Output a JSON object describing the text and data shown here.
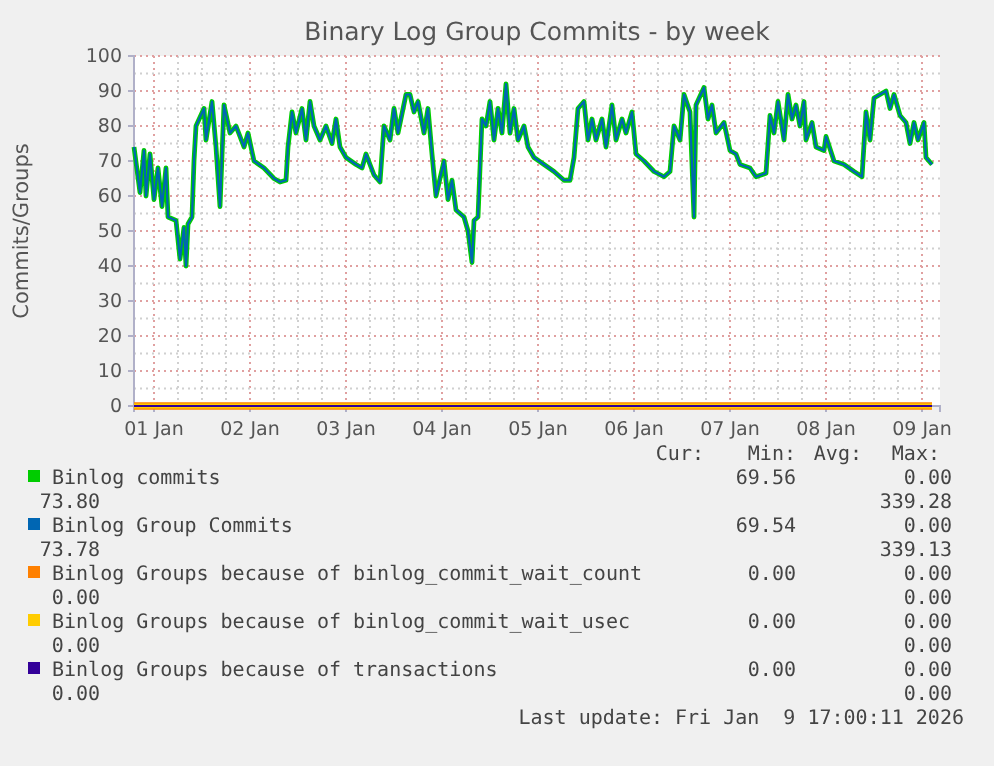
{
  "chart_data": {
    "type": "line",
    "title": "Binary Log Group Commits - by week",
    "ylabel": "Commits/Groups",
    "x": [
      "2025-12-31T19:00",
      "2025-12-31T20:30",
      "2025-12-31T21:30",
      "2025-12-31T22:00",
      "2025-12-31T23:00",
      "2026-01-01T00:00",
      "2026-01-01T01:00",
      "2026-01-01T02:00",
      "2026-01-01T03:00",
      "2026-01-01T03:30",
      "2026-01-01T05:30",
      "2026-01-01T06:30",
      "2026-01-01T07:30",
      "2026-01-01T08:00",
      "2026-01-01T08:30",
      "2026-01-01T09:30",
      "2026-01-01T10:00",
      "2026-01-01T10:30",
      "2026-01-01T12:30",
      "2026-01-01T13:00",
      "2026-01-01T14:30",
      "2026-01-01T15:30",
      "2026-01-01T16:30",
      "2026-01-01T17:30",
      "2026-01-01T19:00",
      "2026-01-01T20:30",
      "2026-01-01T22:30",
      "2026-01-01T23:30",
      "2026-01-02T01:00",
      "2026-01-02T03:30",
      "2026-01-02T06:00",
      "2026-01-02T07:30",
      "2026-01-02T09:00",
      "2026-01-02T09:30",
      "2026-01-02T10:30",
      "2026-01-02T11:30",
      "2026-01-02T13:00",
      "2026-01-02T14:00",
      "2026-01-02T15:00",
      "2026-01-02T16:00",
      "2026-01-02T17:30",
      "2026-01-02T19:00",
      "2026-01-02T20:30",
      "2026-01-02T21:30",
      "2026-01-02T22:30",
      "2026-01-03T00:00",
      "2026-01-03T02:30",
      "2026-01-03T04:00",
      "2026-01-03T05:00",
      "2026-01-03T07:00",
      "2026-01-03T08:30",
      "2026-01-03T09:30",
      "2026-01-03T11:00",
      "2026-01-03T12:00",
      "2026-01-03T13:00",
      "2026-01-03T15:00",
      "2026-01-03T16:00",
      "2026-01-03T17:00",
      "2026-01-03T18:00",
      "2026-01-03T19:30",
      "2026-01-03T20:30",
      "2026-01-03T21:30",
      "2026-01-03T22:30",
      "2026-01-04T00:30",
      "2026-01-04T01:30",
      "2026-01-04T02:30",
      "2026-01-04T03:30",
      "2026-01-04T05:30",
      "2026-01-04T06:30",
      "2026-01-04T07:30",
      "2026-01-04T08:00",
      "2026-01-04T09:00",
      "2026-01-04T10:00",
      "2026-01-04T11:00",
      "2026-01-04T12:00",
      "2026-01-04T13:00",
      "2026-01-04T14:00",
      "2026-01-04T15:00",
      "2026-01-04T16:00",
      "2026-01-04T17:00",
      "2026-01-04T18:00",
      "2026-01-04T19:00",
      "2026-01-04T20:30",
      "2026-01-04T21:30",
      "2026-01-04T23:00",
      "2026-01-05T01:30",
      "2026-01-05T04:00",
      "2026-01-05T06:30",
      "2026-01-05T08:00",
      "2026-01-05T09:00",
      "2026-01-05T10:00",
      "2026-01-05T11:30",
      "2026-01-05T12:30",
      "2026-01-05T13:30",
      "2026-01-05T14:30",
      "2026-01-05T16:00",
      "2026-01-05T17:00",
      "2026-01-05T18:30",
      "2026-01-05T19:30",
      "2026-01-05T21:00",
      "2026-01-05T22:00",
      "2026-01-05T23:30",
      "2026-01-06T00:30",
      "2026-01-06T02:30",
      "2026-01-06T05:00",
      "2026-01-06T07:30",
      "2026-01-06T09:00",
      "2026-01-06T10:00",
      "2026-01-06T11:30",
      "2026-01-06T12:30",
      "2026-01-06T14:00",
      "2026-01-06T15:00",
      "2026-01-06T15:30",
      "2026-01-06T17:30",
      "2026-01-06T18:30",
      "2026-01-06T19:30",
      "2026-01-06T20:30",
      "2026-01-06T22:30",
      "2026-01-07T00:00",
      "2026-01-07T01:30",
      "2026-01-07T02:30",
      "2026-01-07T05:00",
      "2026-01-07T06:30",
      "2026-01-07T09:00",
      "2026-01-07T10:00",
      "2026-01-07T11:00",
      "2026-01-07T12:00",
      "2026-01-07T13:30",
      "2026-01-07T14:30",
      "2026-01-07T15:30",
      "2026-01-07T16:30",
      "2026-01-07T17:30",
      "2026-01-07T18:30",
      "2026-01-07T19:00",
      "2026-01-07T20:30",
      "2026-01-07T21:30",
      "2026-01-07T23:30",
      "2026-01-08T00:00",
      "2026-01-08T02:00",
      "2026-01-08T04:30",
      "2026-01-08T07:00",
      "2026-01-08T09:00",
      "2026-01-08T10:00",
      "2026-01-08T11:00",
      "2026-01-08T12:00",
      "2026-01-08T13:30",
      "2026-01-08T15:00",
      "2026-01-08T16:00",
      "2026-01-08T17:00",
      "2026-01-08T18:30",
      "2026-01-08T20:00",
      "2026-01-08T21:00",
      "2026-01-08T22:00",
      "2026-01-08T23:00",
      "2026-01-09T00:30",
      "2026-01-09T01:00",
      "2026-01-09T02:30"
    ],
    "series": [
      {
        "name": "Binlog commits",
        "color": "#00cc00",
        "values": [
          74,
          61,
          73,
          60,
          72,
          59,
          68,
          57,
          68,
          54,
          53,
          42,
          51,
          40,
          52,
          54,
          70,
          80,
          85,
          76,
          87,
          74,
          57,
          86,
          78,
          80,
          74,
          78,
          70,
          68,
          65,
          64,
          64.5,
          74,
          84,
          78,
          85,
          76,
          87,
          80,
          76,
          80,
          75,
          82,
          74,
          71,
          69,
          68,
          72,
          66,
          64,
          80,
          76,
          85,
          78,
          89,
          89,
          84,
          87,
          78,
          85,
          72,
          60,
          70,
          59,
          64.5,
          56,
          54,
          50,
          41,
          53,
          54,
          82,
          80,
          87,
          76,
          85,
          78,
          92,
          78,
          85,
          76,
          80,
          74,
          71,
          69,
          67,
          64.5,
          64.5,
          71,
          85,
          87,
          76,
          82,
          76,
          82,
          74,
          86,
          76,
          82,
          78,
          84,
          72,
          70,
          67,
          65.5,
          67,
          80,
          76,
          89,
          84,
          54,
          86,
          91,
          82,
          86,
          78,
          81,
          73,
          72,
          69,
          68,
          65.5,
          66.5,
          83,
          78,
          87,
          76,
          89,
          82,
          86,
          80,
          87,
          76,
          81,
          74,
          73,
          77,
          70,
          69,
          67,
          65.5,
          84,
          76,
          88,
          89,
          90,
          85,
          89,
          83,
          81,
          75,
          81,
          76,
          81,
          71,
          69
        ]
      },
      {
        "name": "Binlog Group Commits",
        "color": "#0066b3",
        "values": [
          74,
          61,
          73,
          60,
          72,
          59,
          68,
          57,
          68,
          54,
          53,
          42,
          51,
          40,
          52,
          54,
          70,
          80,
          85,
          76,
          87,
          74,
          57,
          86,
          78,
          80,
          74,
          78,
          70,
          68,
          65,
          64,
          64.5,
          74,
          84,
          78,
          85,
          76,
          87,
          80,
          76,
          80,
          75,
          82,
          74,
          71,
          69,
          68,
          72,
          66,
          64,
          80,
          76,
          85,
          78,
          89,
          89,
          84,
          87,
          78,
          85,
          72,
          60,
          70,
          59,
          64.5,
          56,
          54,
          50,
          41,
          53,
          54,
          82,
          80,
          87,
          76,
          85,
          78,
          92,
          78,
          85,
          76,
          80,
          74,
          71,
          69,
          67,
          64.5,
          64.5,
          71,
          85,
          87,
          76,
          82,
          76,
          82,
          74,
          86,
          76,
          82,
          78,
          84,
          72,
          70,
          67,
          65.5,
          67,
          80,
          76,
          89,
          84,
          54,
          86,
          91,
          82,
          86,
          78,
          81,
          73,
          72,
          69,
          68,
          65.5,
          66.5,
          83,
          78,
          87,
          76,
          89,
          82,
          86,
          80,
          87,
          76,
          81,
          74,
          73,
          77,
          70,
          69,
          67,
          65.5,
          84,
          76,
          88,
          89,
          90,
          85,
          89,
          83,
          81,
          75,
          81,
          76,
          81,
          71,
          69
        ]
      },
      {
        "name": "Binlog Groups because of binlog_commit_wait_count",
        "color": "#ff8000",
        "x": [
          "2025-12-31T19:00",
          "2026-01-09T02:30"
        ],
        "values": [
          0,
          0
        ]
      },
      {
        "name": "Binlog Groups because of binlog_commit_wait_usec",
        "color": "#ffcc00",
        "x": [
          "2025-12-31T19:00",
          "2026-01-09T02:30"
        ],
        "values": [
          0,
          0
        ]
      },
      {
        "name": "Binlog Groups because of transactions",
        "color": "#330099",
        "x": [
          "2025-12-31T19:00",
          "2026-01-09T02:30"
        ],
        "values": [
          0,
          0
        ]
      }
    ],
    "xlim": [
      "2025-12-31T19:00",
      "2026-01-09T04:30"
    ],
    "xticks": [
      {
        "value": "2026-01-01",
        "label": "01 Jan"
      },
      {
        "value": "2026-01-02",
        "label": "02 Jan"
      },
      {
        "value": "2026-01-03",
        "label": "03 Jan"
      },
      {
        "value": "2026-01-04",
        "label": "04 Jan"
      },
      {
        "value": "2026-01-05",
        "label": "05 Jan"
      },
      {
        "value": "2026-01-06",
        "label": "06 Jan"
      },
      {
        "value": "2026-01-07",
        "label": "07 Jan"
      },
      {
        "value": "2026-01-08",
        "label": "08 Jan"
      },
      {
        "value": "2026-01-09",
        "label": "09 Jan"
      }
    ],
    "ylim": [
      0,
      100
    ],
    "yticks": [
      0,
      10,
      20,
      30,
      40,
      50,
      60,
      70,
      80,
      90,
      100
    ],
    "grid": true,
    "legend": "bottom",
    "annotations": [
      "Cur:",
      "Min:",
      "Avg:",
      "Max:",
      "69.56",
      "0.00",
      "73.80",
      "339.28",
      "69.54",
      "0.00",
      "73.78",
      "339.13",
      "0.00",
      "0.00",
      "0.00",
      "0.00",
      "0.00",
      "0.00",
      "0.00",
      "0.00",
      "0.00",
      "0.00",
      "0.00",
      "0.00",
      "Last update: Fri Jan  9 17:00:11 2026"
    ]
  }
}
